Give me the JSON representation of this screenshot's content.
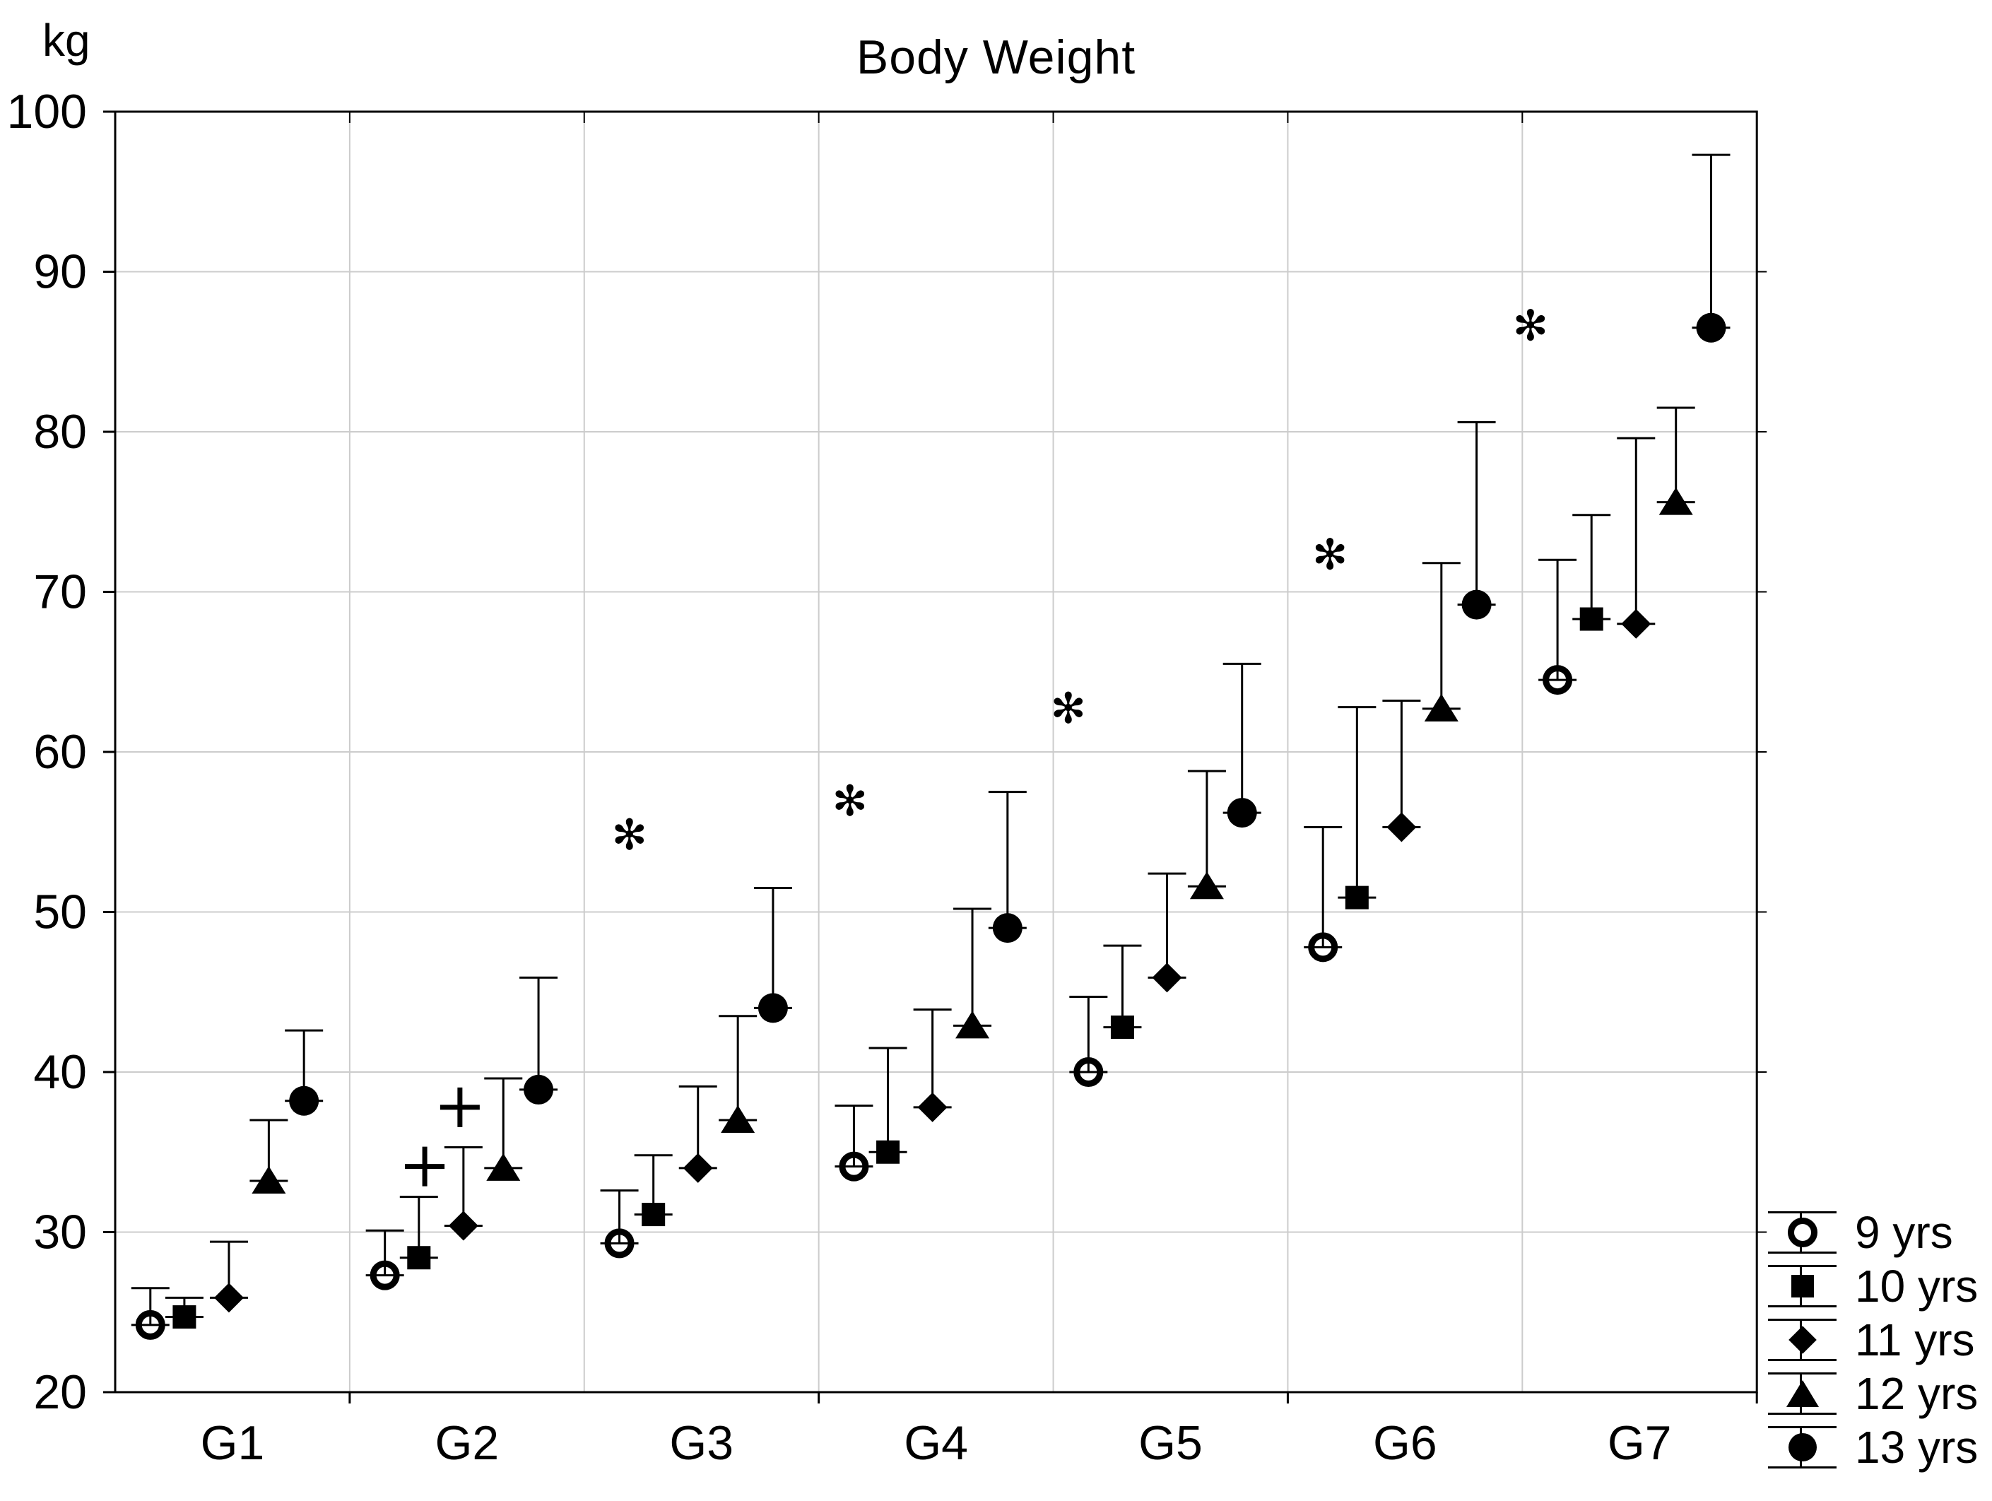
{
  "chart_data": {
    "type": "scatter",
    "title": "Body Weight",
    "ylabel": "kg",
    "xlabel": "",
    "ylim": [
      20,
      100
    ],
    "y_ticks": [
      20,
      30,
      40,
      50,
      60,
      70,
      80,
      90,
      100
    ],
    "categories": [
      "G1",
      "G2",
      "G3",
      "G4",
      "G5",
      "G6",
      "G7"
    ],
    "grid": true,
    "legend_position": "bottom-right",
    "error_bar_direction": "up",
    "colors": {
      "marker": "#000000",
      "grid": "#cccccc",
      "axis": "#000000",
      "background": "#ffffff"
    },
    "series": [
      {
        "name": "9 yrs",
        "marker": "open-circle",
        "means": [
          24.2,
          27.3,
          29.3,
          34.1,
          40.0,
          47.8,
          64.5
        ],
        "upper": [
          26.5,
          30.1,
          32.6,
          37.9,
          44.7,
          55.3,
          72.0
        ]
      },
      {
        "name": "10 yrs",
        "marker": "filled-square",
        "means": [
          24.7,
          28.4,
          31.1,
          35.0,
          42.8,
          50.9,
          68.3
        ],
        "upper": [
          25.9,
          32.2,
          34.8,
          41.5,
          47.9,
          62.8,
          74.8
        ]
      },
      {
        "name": "11 yrs",
        "marker": "filled-diamond",
        "means": [
          25.9,
          30.4,
          34.0,
          37.8,
          45.9,
          55.3,
          68.0
        ],
        "upper": [
          29.4,
          35.3,
          39.1,
          43.9,
          52.4,
          63.2,
          79.6
        ]
      },
      {
        "name": "12 yrs",
        "marker": "filled-triangle",
        "means": [
          33.2,
          34.0,
          37.0,
          42.9,
          51.6,
          62.7,
          75.6
        ],
        "upper": [
          37.0,
          39.6,
          43.5,
          50.2,
          58.8,
          71.8,
          81.5
        ]
      },
      {
        "name": "13 yrs",
        "marker": "filled-circle",
        "means": [
          38.2,
          38.9,
          44.0,
          49.0,
          56.2,
          69.2,
          86.5
        ],
        "upper": [
          42.6,
          45.9,
          51.5,
          57.5,
          65.5,
          80.6,
          97.3
        ]
      }
    ],
    "annotations": {
      "asterisks": [
        {
          "group": "G3",
          "weight": 54.8,
          "x_frac": 0.193,
          "symbol": "✻"
        },
        {
          "group": "G4",
          "weight": 56.9,
          "x_frac": 0.133,
          "symbol": "✻"
        },
        {
          "group": "G5",
          "weight": 62.7,
          "x_frac": 0.064,
          "symbol": "✻"
        },
        {
          "group": "G6",
          "weight": 72.3,
          "x_frac": 0.18,
          "symbol": "✻"
        },
        {
          "group": "G7",
          "weight": 86.6,
          "x_frac": 0.035,
          "symbol": "✻"
        }
      ],
      "plus_marks": [
        {
          "group": "G2",
          "weight": 34.1,
          "x_frac": 0.32,
          "symbol": "+"
        },
        {
          "group": "G2",
          "weight": 37.8,
          "x_frac": 0.47,
          "symbol": "+"
        }
      ]
    }
  }
}
